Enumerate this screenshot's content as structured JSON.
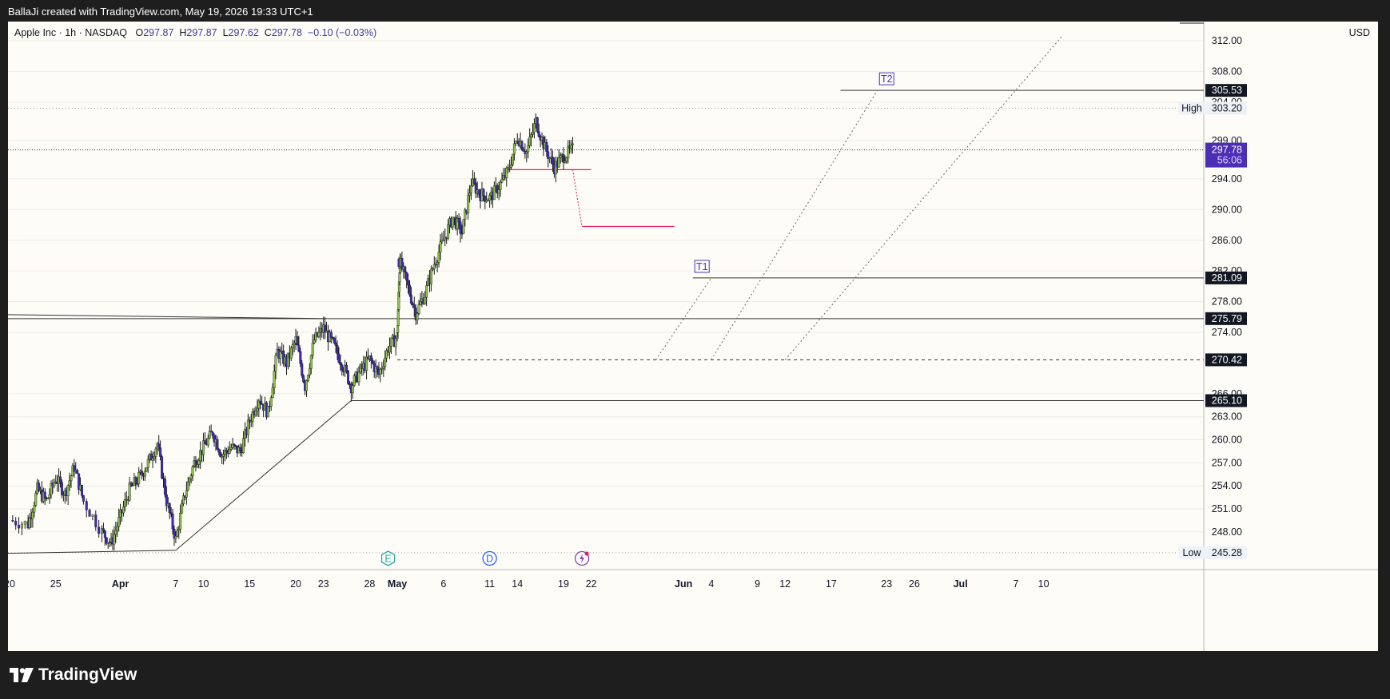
{
  "caption": "BallaJi created with TradingView.com, May 19, 2026 19:33 UTC+1",
  "legend": {
    "symbol": "Apple Inc · 1h · NASDAQ",
    "o_label": "O",
    "o": "297.87",
    "h_label": "H",
    "h": "297.87",
    "l_label": "L",
    "l": "297.62",
    "c_label": "C",
    "c": "297.78",
    "change": "−0.10 (−0.03%)"
  },
  "currency": "USD",
  "brand": "TradingView",
  "colors": {
    "up": "#8bc34a",
    "down": "#3f2bb8",
    "wick": "#1a1a1a",
    "accent": "#4a2fb6",
    "pink": "#e91e63",
    "background": "#fdfcf7"
  },
  "chart_data": {
    "type": "candlestick",
    "y_axis": {
      "ylim": [
        243.5,
        314.5
      ],
      "ticks": [
        "312.00",
        "308.00",
        "304.00",
        "299.00",
        "294.00",
        "290.00",
        "286.00",
        "282.00",
        "278.00",
        "274.00",
        "266.00",
        "263.00",
        "260.00",
        "257.00",
        "254.00",
        "251.00",
        "248.00"
      ],
      "price_tags": [
        {
          "value": "305.53",
          "style": "dark"
        },
        {
          "value": "303.20",
          "style": "light",
          "label": "High"
        },
        {
          "value": "297.78",
          "style": "accent",
          "sub": "56:06"
        },
        {
          "value": "281.09",
          "style": "dark"
        },
        {
          "value": "275.79",
          "style": "dark"
        },
        {
          "value": "270.42",
          "style": "dark"
        },
        {
          "value": "265.10",
          "style": "dark"
        },
        {
          "value": "245.28",
          "style": "light",
          "label": "Low"
        }
      ]
    },
    "x_axis": {
      "range": [
        "Mar 20",
        "Jul 12"
      ],
      "ticks": [
        {
          "date": "2026-03-20",
          "label": "20",
          "bold": false
        },
        {
          "date": "2026-03-25",
          "label": "25",
          "bold": false
        },
        {
          "date": "2026-04-01",
          "label": "Apr",
          "bold": true
        },
        {
          "date": "2026-04-07",
          "label": "7",
          "bold": false
        },
        {
          "date": "2026-04-10",
          "label": "10",
          "bold": false
        },
        {
          "date": "2026-04-15",
          "label": "15",
          "bold": false
        },
        {
          "date": "2026-04-20",
          "label": "20",
          "bold": false
        },
        {
          "date": "2026-04-23",
          "label": "23",
          "bold": false
        },
        {
          "date": "2026-04-28",
          "label": "28",
          "bold": false
        },
        {
          "date": "2026-05-01",
          "label": "May",
          "bold": true
        },
        {
          "date": "2026-05-06",
          "label": "6",
          "bold": false
        },
        {
          "date": "2026-05-11",
          "label": "11",
          "bold": false
        },
        {
          "date": "2026-05-14",
          "label": "14",
          "bold": false
        },
        {
          "date": "2026-05-19",
          "label": "19",
          "bold": false
        },
        {
          "date": "2026-05-22",
          "label": "22",
          "bold": false
        },
        {
          "date": "2026-06-01",
          "label": "Jun",
          "bold": true
        },
        {
          "date": "2026-06-04",
          "label": "4",
          "bold": false
        },
        {
          "date": "2026-06-09",
          "label": "9",
          "bold": false
        },
        {
          "date": "2026-06-12",
          "label": "12",
          "bold": false
        },
        {
          "date": "2026-06-17",
          "label": "17",
          "bold": false
        },
        {
          "date": "2026-06-23",
          "label": "23",
          "bold": false
        },
        {
          "date": "2026-06-26",
          "label": "26",
          "bold": false
        },
        {
          "date": "2026-07-01",
          "label": "Jul",
          "bold": true
        },
        {
          "date": "2026-07-07",
          "label": "7",
          "bold": false
        },
        {
          "date": "2026-07-10",
          "label": "10",
          "bold": false
        }
      ]
    },
    "price_path": [
      [
        "2026-03-20",
        249.5
      ],
      [
        "2026-03-22",
        249.0
      ],
      [
        "2026-03-23",
        253.5
      ],
      [
        "2026-03-24",
        252.0
      ],
      [
        "2026-03-25",
        255.0
      ],
      [
        "2026-03-26",
        253.0
      ],
      [
        "2026-03-27",
        256.5
      ],
      [
        "2026-03-28",
        252.0
      ],
      [
        "2026-03-30",
        248.0
      ],
      [
        "2026-03-31",
        246.5
      ],
      [
        "2026-04-01",
        250.0
      ],
      [
        "2026-04-02",
        253.5
      ],
      [
        "2026-04-03",
        255.0
      ],
      [
        "2026-04-04",
        257.0
      ],
      [
        "2026-04-05",
        259.5
      ],
      [
        "2026-04-06",
        252.0
      ],
      [
        "2026-04-07",
        247.0
      ],
      [
        "2026-04-08",
        253.0
      ],
      [
        "2026-04-09",
        257.0
      ],
      [
        "2026-04-10",
        259.0
      ],
      [
        "2026-04-11",
        261.0
      ],
      [
        "2026-04-12",
        258.0
      ],
      [
        "2026-04-13",
        259.0
      ],
      [
        "2026-04-14",
        258.5
      ],
      [
        "2026-04-15",
        262.5
      ],
      [
        "2026-04-16",
        265.5
      ],
      [
        "2026-04-17",
        263.5
      ],
      [
        "2026-04-18",
        271.5
      ],
      [
        "2026-04-19",
        270.0
      ],
      [
        "2026-04-20",
        273.0
      ],
      [
        "2026-04-21",
        267.0
      ],
      [
        "2026-04-22",
        273.0
      ],
      [
        "2026-04-23",
        274.5
      ],
      [
        "2026-04-24",
        272.5
      ],
      [
        "2026-04-25",
        270.0
      ],
      [
        "2026-04-26",
        267.0
      ],
      [
        "2026-04-27",
        269.0
      ],
      [
        "2026-04-28",
        270.5
      ],
      [
        "2026-04-29",
        268.5
      ],
      [
        "2026-04-30",
        272.0
      ],
      [
        "2026-05-01",
        273.5
      ],
      [
        "2026-05-01",
        284.0
      ],
      [
        "2026-05-02",
        280.5
      ],
      [
        "2026-05-03",
        276.5
      ],
      [
        "2026-05-04",
        279.0
      ],
      [
        "2026-05-05",
        283.0
      ],
      [
        "2026-05-06",
        286.0
      ],
      [
        "2026-05-07",
        289.0
      ],
      [
        "2026-05-08",
        287.0
      ],
      [
        "2026-05-09",
        293.5
      ],
      [
        "2026-05-10",
        292.0
      ],
      [
        "2026-05-11",
        291.5
      ],
      [
        "2026-05-12",
        293.0
      ],
      [
        "2026-05-13",
        295.0
      ],
      [
        "2026-05-14",
        299.5
      ],
      [
        "2026-05-15",
        297.5
      ],
      [
        "2026-05-16",
        301.5
      ],
      [
        "2026-05-17",
        298.0
      ],
      [
        "2026-05-18",
        295.5
      ],
      [
        "2026-05-19",
        297.0
      ],
      [
        "2026-05-20",
        297.8
      ]
    ],
    "last_price": 297.78,
    "drawings": {
      "horizontal_levels": [
        305.53,
        281.09,
        275.79,
        270.42,
        265.1
      ],
      "target_labels": [
        {
          "text": "T1",
          "date": "2026-06-03",
          "value": 281.09
        },
        {
          "text": "T2",
          "date": "2026-06-23",
          "value": 305.53
        }
      ]
    },
    "events": [
      {
        "date": "2026-04-30",
        "label": "E"
      },
      {
        "date": "2026-05-11",
        "label": "D"
      },
      {
        "date": "2026-05-21",
        "label": "spark"
      }
    ]
  }
}
